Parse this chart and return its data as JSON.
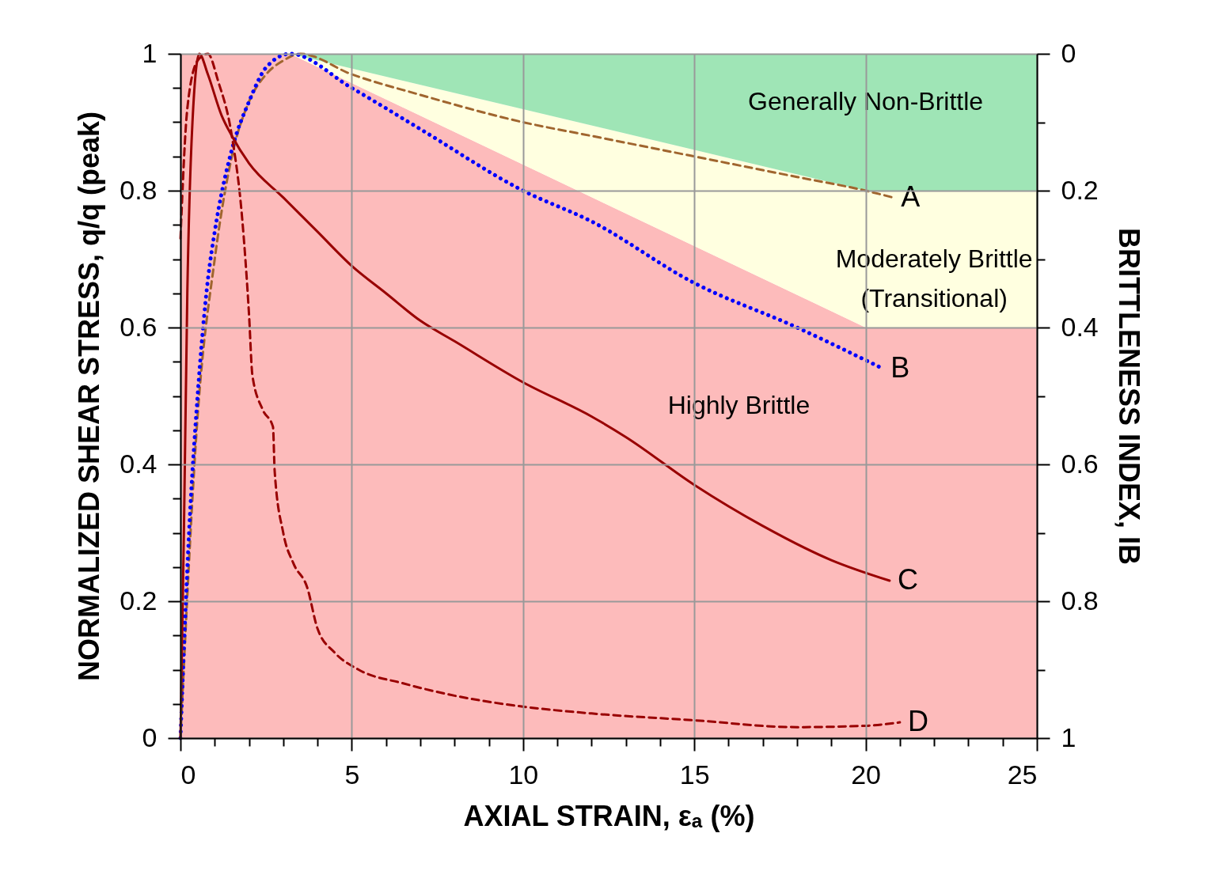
{
  "chart_data": {
    "type": "line",
    "xlabel": "AXIAL STRAIN, εₐ (%)",
    "ylabel": "NORMALIZED SHEAR STRESS, q/q (peak)",
    "y2label": "BRITTLENESS INDEX, IB",
    "xlim": [
      0,
      25
    ],
    "xticks": [
      0,
      {
        "value": 1,
        "label": null
      },
      {
        "value": 2,
        "label": null
      },
      {
        "value": 3,
        "label": null
      },
      {
        "value": 4,
        "label": null
      },
      5,
      {
        "value": 6,
        "label": null
      },
      {
        "value": 7,
        "label": null
      },
      {
        "value": 8,
        "label": null
      },
      {
        "value": 9,
        "label": null
      },
      10,
      {
        "value": 11,
        "label": null
      },
      {
        "value": 12,
        "label": null
      },
      {
        "value": 13,
        "label": null
      },
      {
        "value": 14,
        "label": null
      },
      15,
      {
        "value": 16,
        "label": null
      },
      {
        "value": 17,
        "label": null
      },
      {
        "value": 18,
        "label": null
      },
      {
        "value": 19,
        "label": null
      },
      20,
      {
        "value": 21,
        "label": null
      },
      {
        "value": 22,
        "label": null
      },
      {
        "value": 23,
        "label": null
      },
      {
        "value": 24,
        "label": null
      },
      25
    ],
    "ylim": [
      0,
      1
    ],
    "yticks": [
      0,
      {
        "value": 0.05,
        "label": null
      },
      {
        "value": 0.1,
        "label": null
      },
      {
        "value": 0.15,
        "label": null
      },
      0.2,
      {
        "value": 0.25,
        "label": null
      },
      {
        "value": 0.3,
        "label": null
      },
      {
        "value": 0.35,
        "label": null
      },
      0.4,
      {
        "value": 0.45,
        "label": null
      },
      {
        "value": 0.5,
        "label": null
      },
      {
        "value": 0.55,
        "label": null
      },
      0.6,
      {
        "value": 0.65,
        "label": null
      },
      {
        "value": 0.7,
        "label": null
      },
      {
        "value": 0.75,
        "label": null
      },
      0.8,
      {
        "value": 0.85,
        "label": null
      },
      {
        "value": 0.9,
        "label": null
      },
      {
        "value": 0.95,
        "label": null
      },
      1
    ],
    "y2lim": [
      1,
      0
    ],
    "y2ticks": [
      0,
      {
        "value": 0.1,
        "label": null
      },
      0.2,
      {
        "value": 0.3,
        "label": null
      },
      0.4,
      {
        "value": 0.5,
        "label": null
      },
      0.6,
      {
        "value": 0.7,
        "label": null
      },
      0.8,
      {
        "value": 0.9,
        "label": null
      },
      1
    ],
    "grid": true,
    "stacked": true,
    "series": [
      {
        "name": "Highly Brittle",
        "type": "area",
        "color": "#fdbbbb",
        "x": [
          0,
          3.2,
          20,
          25
        ],
        "values": [
          1,
          1,
          0.6,
          0.6
        ]
      },
      {
        "name": "Moderately Brittle (Transitional)",
        "type": "area",
        "color": "#ffffe0",
        "x": [
          0,
          3.2,
          20,
          25
        ],
        "values": [
          0,
          0,
          0.2,
          0.2
        ]
      },
      {
        "name": "Generally Non-Brittle",
        "type": "area",
        "color": "#9fe5b6",
        "x": [
          0,
          3.2,
          20,
          25
        ],
        "values": [
          0,
          0,
          0.2,
          0.2
        ]
      },
      {
        "name": "A",
        "color": "#a0652e",
        "line_style": "dashed",
        "x": [
          0,
          0.5,
          1,
          1.5,
          2,
          2.5,
          3,
          3.5,
          5,
          7,
          10,
          12,
          15,
          18,
          20,
          20.8
        ],
        "values": [
          0,
          0.47,
          0.7,
          0.85,
          0.93,
          0.97,
          0.99,
          1,
          0.97,
          0.94,
          0.9,
          0.88,
          0.85,
          0.82,
          0.8,
          0.79
        ]
      },
      {
        "name": "B",
        "color": "#0000ff",
        "line_style": "dotted",
        "x": [
          0,
          0.25,
          0.5,
          0.8,
          1,
          1.5,
          2,
          2.5,
          3.2,
          5,
          7,
          10,
          12,
          15,
          18,
          20.5
        ],
        "values": [
          0,
          0.3,
          0.5,
          0.67,
          0.74,
          0.86,
          0.93,
          0.98,
          1,
          0.95,
          0.89,
          0.8,
          0.755,
          0.665,
          0.6,
          0.54
        ]
      },
      {
        "name": "C",
        "color": "#990000",
        "line_style": "solid",
        "x": [
          0,
          0.1,
          0.2,
          0.35,
          0.55,
          0.8,
          1.2,
          1.5,
          2,
          3,
          4,
          5,
          6,
          7,
          8,
          10,
          12,
          13,
          15,
          17,
          19,
          20.7
        ],
        "values": [
          0,
          0.3,
          0.65,
          0.9,
          1,
          0.97,
          0.91,
          0.88,
          0.84,
          0.79,
          0.74,
          0.69,
          0.65,
          0.61,
          0.58,
          0.52,
          0.47,
          0.44,
          0.37,
          0.31,
          0.26,
          0.23
        ]
      },
      {
        "name": "D",
        "color": "#990000",
        "line_style": "dashed",
        "x": [
          0,
          0.2,
          0.5,
          0.8,
          1.1,
          1.5,
          1.8,
          2,
          2.1,
          2.4,
          2.7,
          2.75,
          3,
          3.3,
          3.7,
          4,
          4.5,
          5.2,
          6.5,
          8,
          10,
          12,
          15,
          18,
          20,
          21
        ],
        "values": [
          0.73,
          0.92,
          0.99,
          1,
          0.96,
          0.88,
          0.76,
          0.62,
          0.53,
          0.48,
          0.455,
          0.39,
          0.3,
          0.255,
          0.22,
          0.16,
          0.125,
          0.1,
          0.08,
          0.062,
          0.046,
          0.036,
          0.026,
          0.016,
          0.018,
          0.023
        ]
      }
    ]
  }
}
